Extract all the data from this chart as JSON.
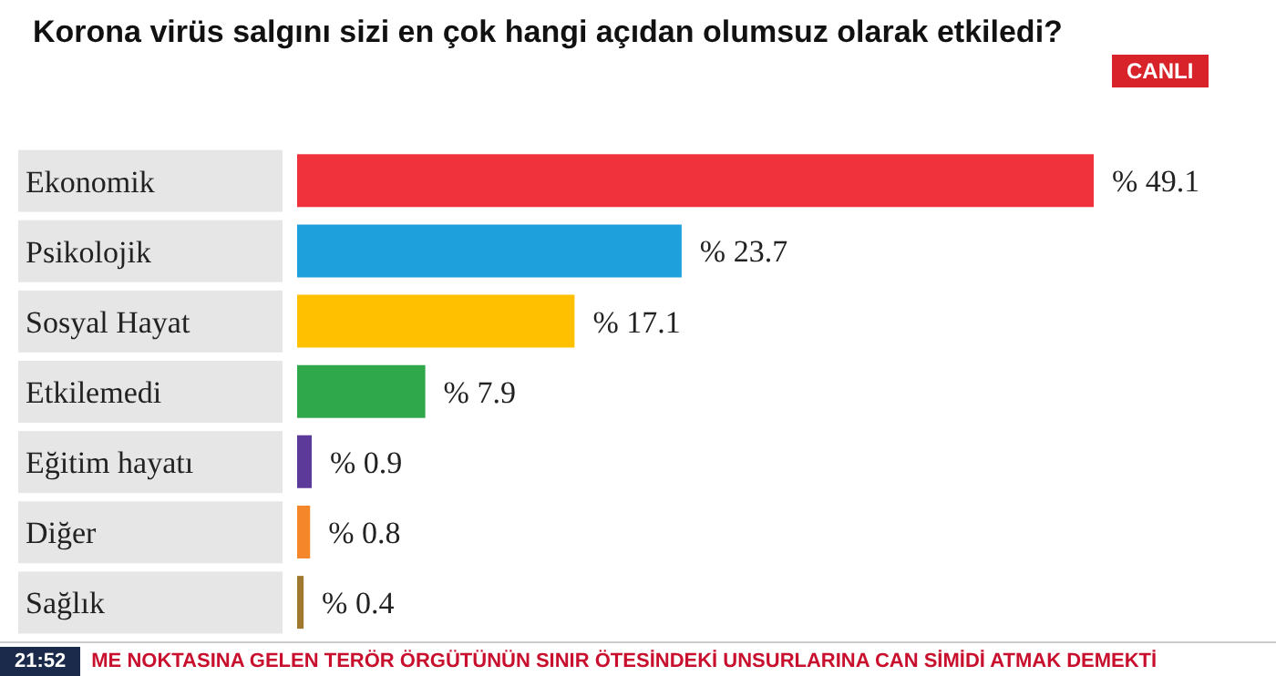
{
  "chart_data": {
    "type": "bar",
    "orientation": "horizontal",
    "title": "Korona virüs salgını sizi en çok hangi açıdan olumsuz olarak etkiledi?",
    "categories": [
      "Ekonomik",
      "Psikolojik",
      "Sosyal Hayat",
      "Etkilemedi",
      "Eğitim hayatı",
      "Diğer",
      "Sağlık"
    ],
    "values": [
      49.1,
      23.7,
      17.1,
      7.9,
      0.9,
      0.8,
      0.4
    ],
    "colors": [
      "#f0323c",
      "#1ea0dc",
      "#ffc000",
      "#2ea84a",
      "#5b3a9a",
      "#f5862a",
      "#a07830"
    ],
    "value_labels": [
      "% 49.1",
      "% 23.7",
      "% 17.1",
      "% 7.9",
      "% 0.9",
      "% 0.8",
      "% 0.4"
    ],
    "annotations": [
      "CANLI",
      "21:52",
      "ME NOKTASINA GELEN TERÖR ÖRGÜTÜNÜN SINIR ÖTESİNDEKİ UNSURLARINA CAN SİMİDİ ATMAK DEMEKTİ"
    ]
  }
}
